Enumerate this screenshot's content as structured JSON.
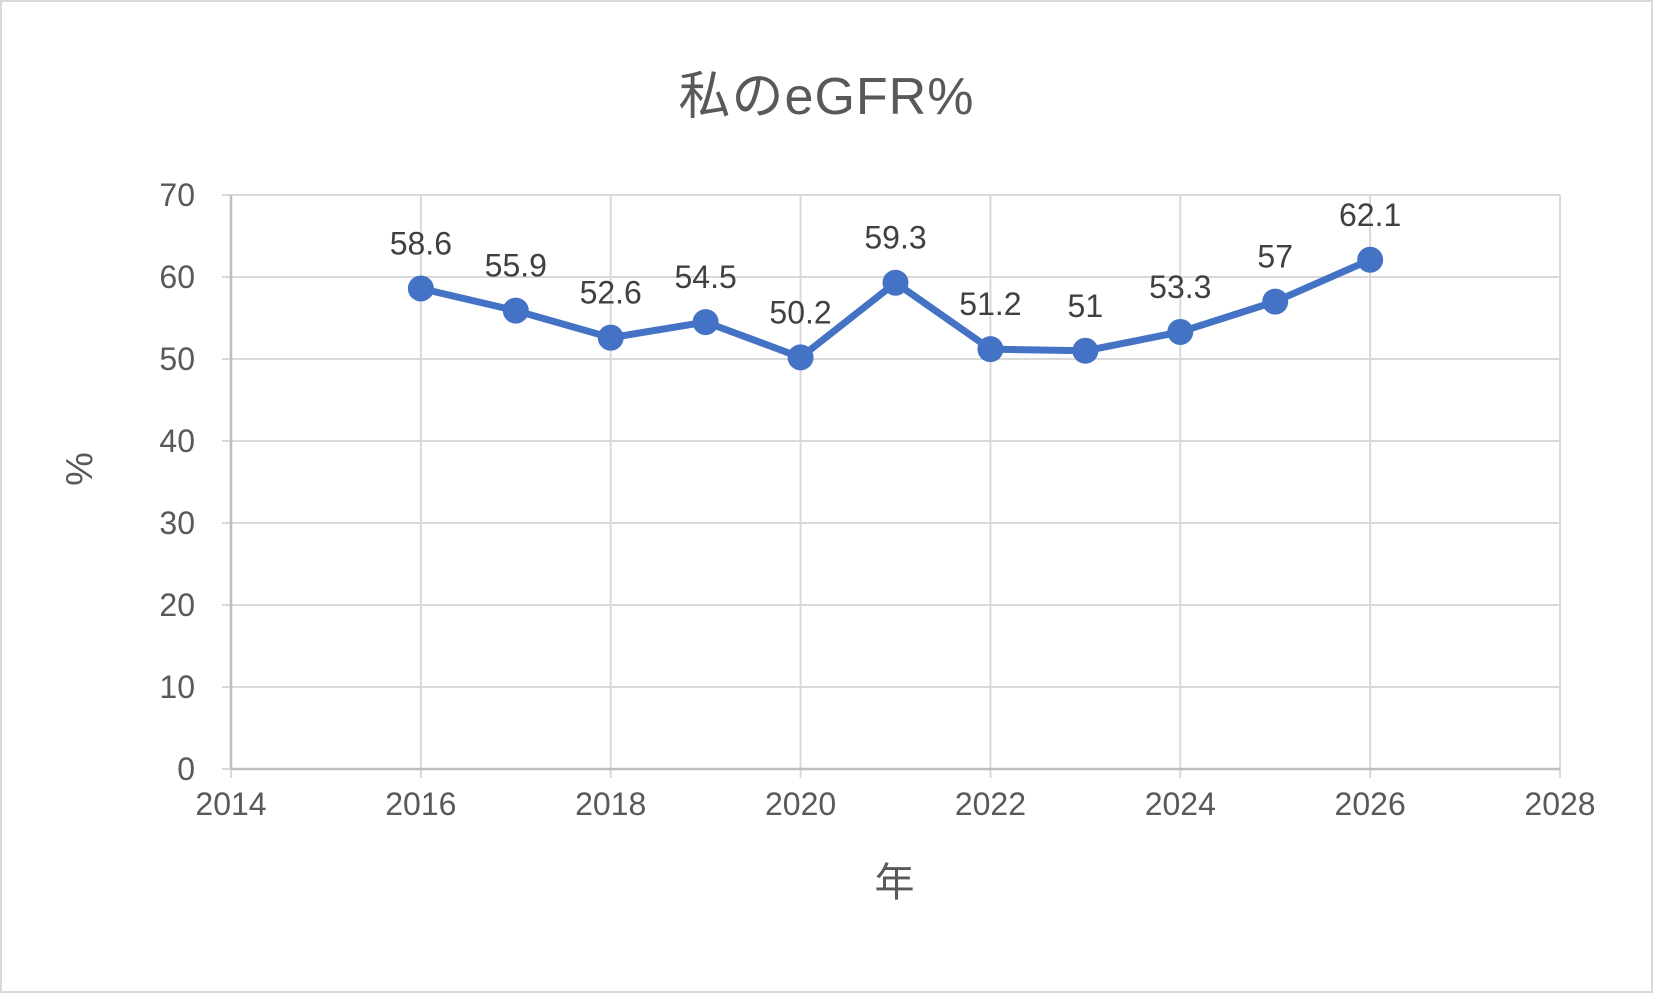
{
  "chart_data": {
    "type": "line",
    "title": "私のeGFR%",
    "xlabel": "年",
    "ylabel": "%",
    "x": [
      2016,
      2017,
      2018,
      2019,
      2020,
      2021,
      2022,
      2023,
      2024,
      2025,
      2026
    ],
    "values": [
      58.6,
      55.9,
      52.6,
      54.5,
      50.2,
      59.3,
      51.2,
      51,
      53.3,
      57,
      62.1
    ],
    "point_labels": [
      "58.6",
      "55.9",
      "52.6",
      "54.5",
      "50.2",
      "59.3",
      "51.2",
      "51",
      "53.3",
      "57",
      "62.1"
    ],
    "xlim": [
      2014,
      2028
    ],
    "ylim": [
      0,
      70
    ],
    "xticks": [
      2014,
      2016,
      2018,
      2020,
      2022,
      2024,
      2026,
      2028
    ],
    "yticks": [
      0,
      10,
      20,
      30,
      40,
      50,
      60,
      70
    ],
    "grid": true,
    "legend": "none",
    "line_color": "#4472C4",
    "marker": "circle",
    "grid_color": "#d9d9d9",
    "axis_line_color": "#bfbfbf",
    "tick_label_color": "#595959",
    "data_label_color": "#404040",
    "title_color": "#595959"
  }
}
